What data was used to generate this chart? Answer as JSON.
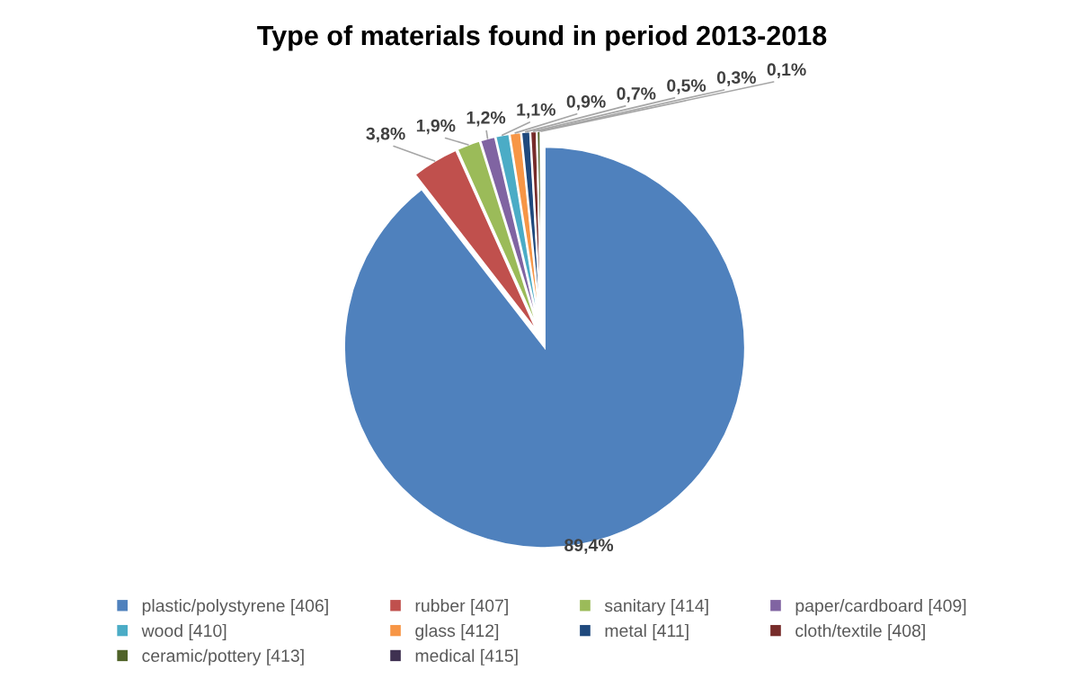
{
  "chart_data": {
    "type": "pie",
    "title": "Type of materials found in period 2013-2018",
    "categories": [
      "plastic/polystyrene [406]",
      "rubber [407]",
      "sanitary [414]",
      "paper/cardboard [409]",
      "wood [410]",
      "glass [412]",
      "metal [411]",
      "cloth/textile [408]",
      "ceramic/pottery [413]",
      "medical [415]"
    ],
    "values": [
      89.4,
      3.8,
      1.9,
      1.2,
      1.1,
      0.9,
      0.7,
      0.5,
      0.3,
      0.1
    ],
    "colors": [
      "#4f81bd",
      "#c0504d",
      "#9bbb59",
      "#8064a2",
      "#4bacc6",
      "#f79646",
      "#1f497d",
      "#772c2a",
      "#4f6228",
      "#3f3151"
    ],
    "value_labels": [
      "89,4%",
      "3,8%",
      "1,9%",
      "1,2%",
      "1,1%",
      "0,9%",
      "0,7%",
      "0,5%",
      "0,3%",
      "0,1%"
    ],
    "legend": "bottom"
  }
}
